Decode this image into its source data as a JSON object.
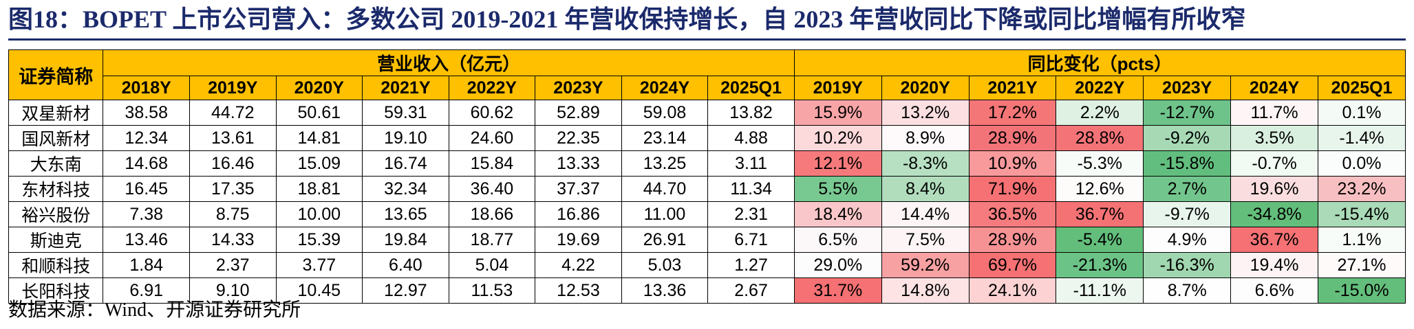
{
  "title": "图18：BOPET 上市公司营入：多数公司 2019-2021 年营收保持增长，自 2023 年营收同比下降或同比增幅有所收窄",
  "table": {
    "corner_label": "证券简称",
    "group_revenue": "营业收入（亿元）",
    "group_yoy": "同比变化（pcts）",
    "revenue_years": [
      "2018Y",
      "2019Y",
      "2020Y",
      "2021Y",
      "2022Y",
      "2023Y",
      "2024Y",
      "2025Q1"
    ],
    "yoy_years": [
      "2019Y",
      "2020Y",
      "2021Y",
      "2022Y",
      "2023Y",
      "2024Y",
      "2025Q1"
    ],
    "rows": [
      {
        "name": "双星新材",
        "revenue": [
          "38.58",
          "44.72",
          "50.61",
          "59.31",
          "60.62",
          "52.89",
          "59.08",
          "13.82"
        ],
        "yoy": [
          "15.9%",
          "13.2%",
          "17.2%",
          "2.2%",
          "-12.7%",
          "11.7%",
          "0.1%"
        ],
        "yoy_colors": [
          "#f8a5a8",
          "#fcdfe1",
          "#f57677",
          "#dff1e2",
          "#6ec38a",
          "#fef5f6",
          "#f4fbf6"
        ]
      },
      {
        "name": "国风新材",
        "revenue": [
          "12.34",
          "13.61",
          "14.81",
          "19.10",
          "24.60",
          "22.35",
          "23.14",
          "4.88"
        ],
        "yoy": [
          "10.2%",
          "8.9%",
          "28.9%",
          "28.8%",
          "-9.2%",
          "3.5%",
          "-1.4%"
        ],
        "yoy_colors": [
          "#fcd9db",
          "#fefafb",
          "#f27479",
          "#f47377",
          "#a7d9b5",
          "#d9efdf",
          "#e8f5ec"
        ]
      },
      {
        "name": "大东南",
        "revenue": [
          "14.68",
          "16.46",
          "15.09",
          "16.74",
          "15.84",
          "13.33",
          "13.25",
          "3.11"
        ],
        "yoy": [
          "12.1%",
          "-8.3%",
          "10.9%",
          "-5.3%",
          "-15.8%",
          "-0.7%",
          "0.0%"
        ],
        "yoy_colors": [
          "#f67a7c",
          "#b7e0c2",
          "#f89a9c",
          "#f8fcf9",
          "#62be7e",
          "#f2faf4",
          "#fbfdfc"
        ]
      },
      {
        "name": "东材科技",
        "revenue": [
          "16.45",
          "17.35",
          "18.81",
          "32.34",
          "36.40",
          "37.37",
          "44.70",
          "11.34"
        ],
        "yoy": [
          "5.5%",
          "8.4%",
          "71.9%",
          "12.6%",
          "2.7%",
          "19.6%",
          "23.2%"
        ],
        "yoy_colors": [
          "#78c891",
          "#b1ddbd",
          "#f57173",
          "#fefbfb",
          "#72c58c",
          "#fadedf",
          "#f7bfc1"
        ]
      },
      {
        "name": "裕兴股份",
        "revenue": [
          "7.38",
          "8.75",
          "10.00",
          "13.65",
          "18.66",
          "16.86",
          "11.00",
          "2.31"
        ],
        "yoy": [
          "18.4%",
          "14.4%",
          "36.5%",
          "36.7%",
          "-9.7%",
          "-34.8%",
          "-15.4%"
        ],
        "yoy_colors": [
          "#f9c7c9",
          "#fdf4f5",
          "#f67b7e",
          "#f57274",
          "#e8f5ec",
          "#63be7b",
          "#aadab7"
        ]
      },
      {
        "name": "斯迪克",
        "revenue": [
          "13.46",
          "14.33",
          "15.39",
          "19.84",
          "18.77",
          "19.69",
          "26.91",
          "6.71"
        ],
        "yoy": [
          "6.5%",
          "7.5%",
          "28.9%",
          "-5.4%",
          "4.9%",
          "36.7%",
          "1.1%"
        ],
        "yoy_colors": [
          "#fcf8f9",
          "#fdf4f5",
          "#f79294",
          "#63be7b",
          "#fdfdfd",
          "#f57173",
          "#f7fcf8"
        ]
      },
      {
        "name": "和顺科技",
        "revenue": [
          "1.84",
          "2.37",
          "3.77",
          "6.40",
          "5.04",
          "4.22",
          "5.03",
          "1.27"
        ],
        "yoy": [
          "29.0%",
          "59.2%",
          "69.7%",
          "-21.3%",
          "-16.3%",
          "19.4%",
          "27.1%"
        ],
        "yoy_colors": [
          "#fdfcfc",
          "#f8a1a3",
          "#f57173",
          "#6cc387",
          "#a1d7b0",
          "#fdf3f4",
          "#fefafa"
        ]
      },
      {
        "name": "长阳科技",
        "revenue": [
          "6.91",
          "9.10",
          "10.45",
          "12.97",
          "11.53",
          "12.53",
          "13.36",
          "2.67"
        ],
        "yoy": [
          "31.7%",
          "14.8%",
          "24.1%",
          "-11.1%",
          "8.7%",
          "6.6%",
          "-15.0%"
        ],
        "yoy_colors": [
          "#f57173",
          "#fde3e4",
          "#fcd2d3",
          "#edf7f0",
          "#fefefe",
          "#fdfdfd",
          "#63be7b"
        ]
      }
    ]
  },
  "source": "数据来源：Wind、开源证券研究所"
}
